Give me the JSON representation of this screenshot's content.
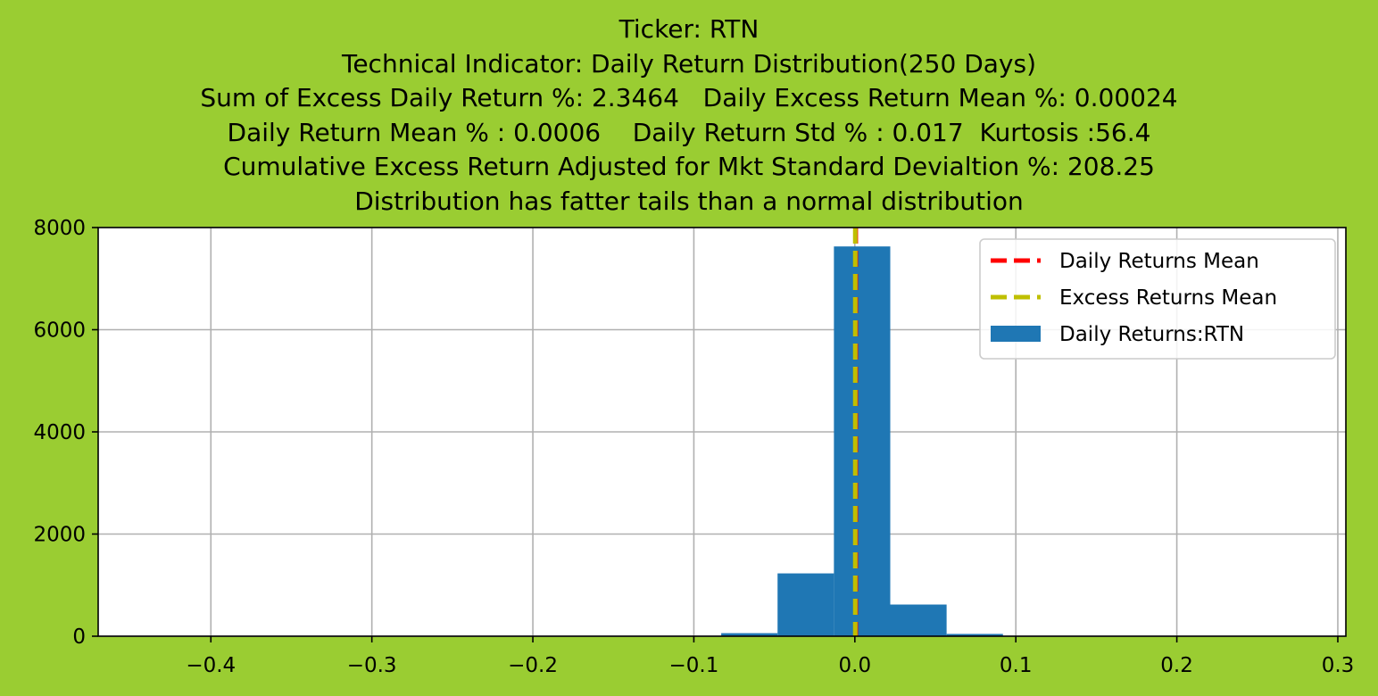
{
  "title_lines": [
    "Ticker: RTN",
    "Technical Indicator: Daily Return Distribution(250 Days)",
    "Sum of Excess Daily Return %: 2.3464   Daily Excess Return Mean %: 0.00024",
    "Daily Return Mean % : 0.0006    Daily Return Std % : 0.017  Kurtosis :56.4",
    "Cumulative Excess Return Adjusted for Mkt Standard Devialtion %: 208.25",
    "Distribution has fatter tails than a normal distribution"
  ],
  "chart_data": {
    "type": "bar",
    "xlim": [
      -0.47,
      0.305
    ],
    "ylim": [
      0,
      8000
    ],
    "x_ticks": [
      -0.4,
      -0.3,
      -0.2,
      -0.1,
      0.0,
      0.1,
      0.2,
      0.3
    ],
    "x_tick_labels": [
      "−0.4",
      "−0.3",
      "−0.2",
      "−0.1",
      "0.0",
      "0.1",
      "0.2",
      "0.3"
    ],
    "y_ticks": [
      0,
      2000,
      4000,
      6000,
      8000
    ],
    "y_tick_labels": [
      "0",
      "2000",
      "4000",
      "6000",
      "8000"
    ],
    "grid": true,
    "legend_position": "top-right",
    "bins": [
      {
        "x0": -0.453,
        "x1": -0.418,
        "count": 0
      },
      {
        "x0": -0.418,
        "x1": -0.383,
        "count": 0
      },
      {
        "x0": -0.383,
        "x1": -0.348,
        "count": 0
      },
      {
        "x0": -0.348,
        "x1": -0.313,
        "count": 0
      },
      {
        "x0": -0.313,
        "x1": -0.278,
        "count": 0
      },
      {
        "x0": -0.278,
        "x1": -0.243,
        "count": 0
      },
      {
        "x0": -0.243,
        "x1": -0.208,
        "count": 0
      },
      {
        "x0": -0.208,
        "x1": -0.173,
        "count": 0
      },
      {
        "x0": -0.173,
        "x1": -0.138,
        "count": 0
      },
      {
        "x0": -0.138,
        "x1": -0.118,
        "count": 0
      },
      {
        "x0": -0.118,
        "x1": -0.083,
        "count": 5
      },
      {
        "x0": -0.083,
        "x1": -0.048,
        "count": 60
      },
      {
        "x0": -0.048,
        "x1": -0.013,
        "count": 1230
      },
      {
        "x0": -0.013,
        "x1": 0.022,
        "count": 7630
      },
      {
        "x0": 0.022,
        "x1": 0.057,
        "count": 620
      },
      {
        "x0": 0.057,
        "x1": 0.092,
        "count": 45
      },
      {
        "x0": 0.092,
        "x1": 0.127,
        "count": 5
      },
      {
        "x0": 0.127,
        "x1": 0.162,
        "count": 0
      },
      {
        "x0": 0.162,
        "x1": 0.197,
        "count": 0
      },
      {
        "x0": 0.197,
        "x1": 0.232,
        "count": 0
      },
      {
        "x0": 0.232,
        "x1": 0.267,
        "count": 0
      },
      {
        "x0": 0.267,
        "x1": 0.286,
        "count": 0
      }
    ],
    "vlines": [
      {
        "name": "Daily Returns Mean",
        "x": 0.0006,
        "color": "#ff0000"
      },
      {
        "name": "Excess Returns Mean",
        "x": 0.00024,
        "color": "#bfbf00"
      }
    ],
    "hist_series": {
      "name": "Daily Returns:RTN",
      "color": "#1f77b4"
    },
    "legend": [
      {
        "label": "Daily Returns Mean",
        "kind": "dashed-line",
        "color": "#ff0000"
      },
      {
        "label": "Excess Returns Mean",
        "kind": "dashed-line",
        "color": "#bfbf00"
      },
      {
        "label": "Daily Returns:RTN",
        "kind": "patch",
        "color": "#1f77b4"
      }
    ]
  }
}
